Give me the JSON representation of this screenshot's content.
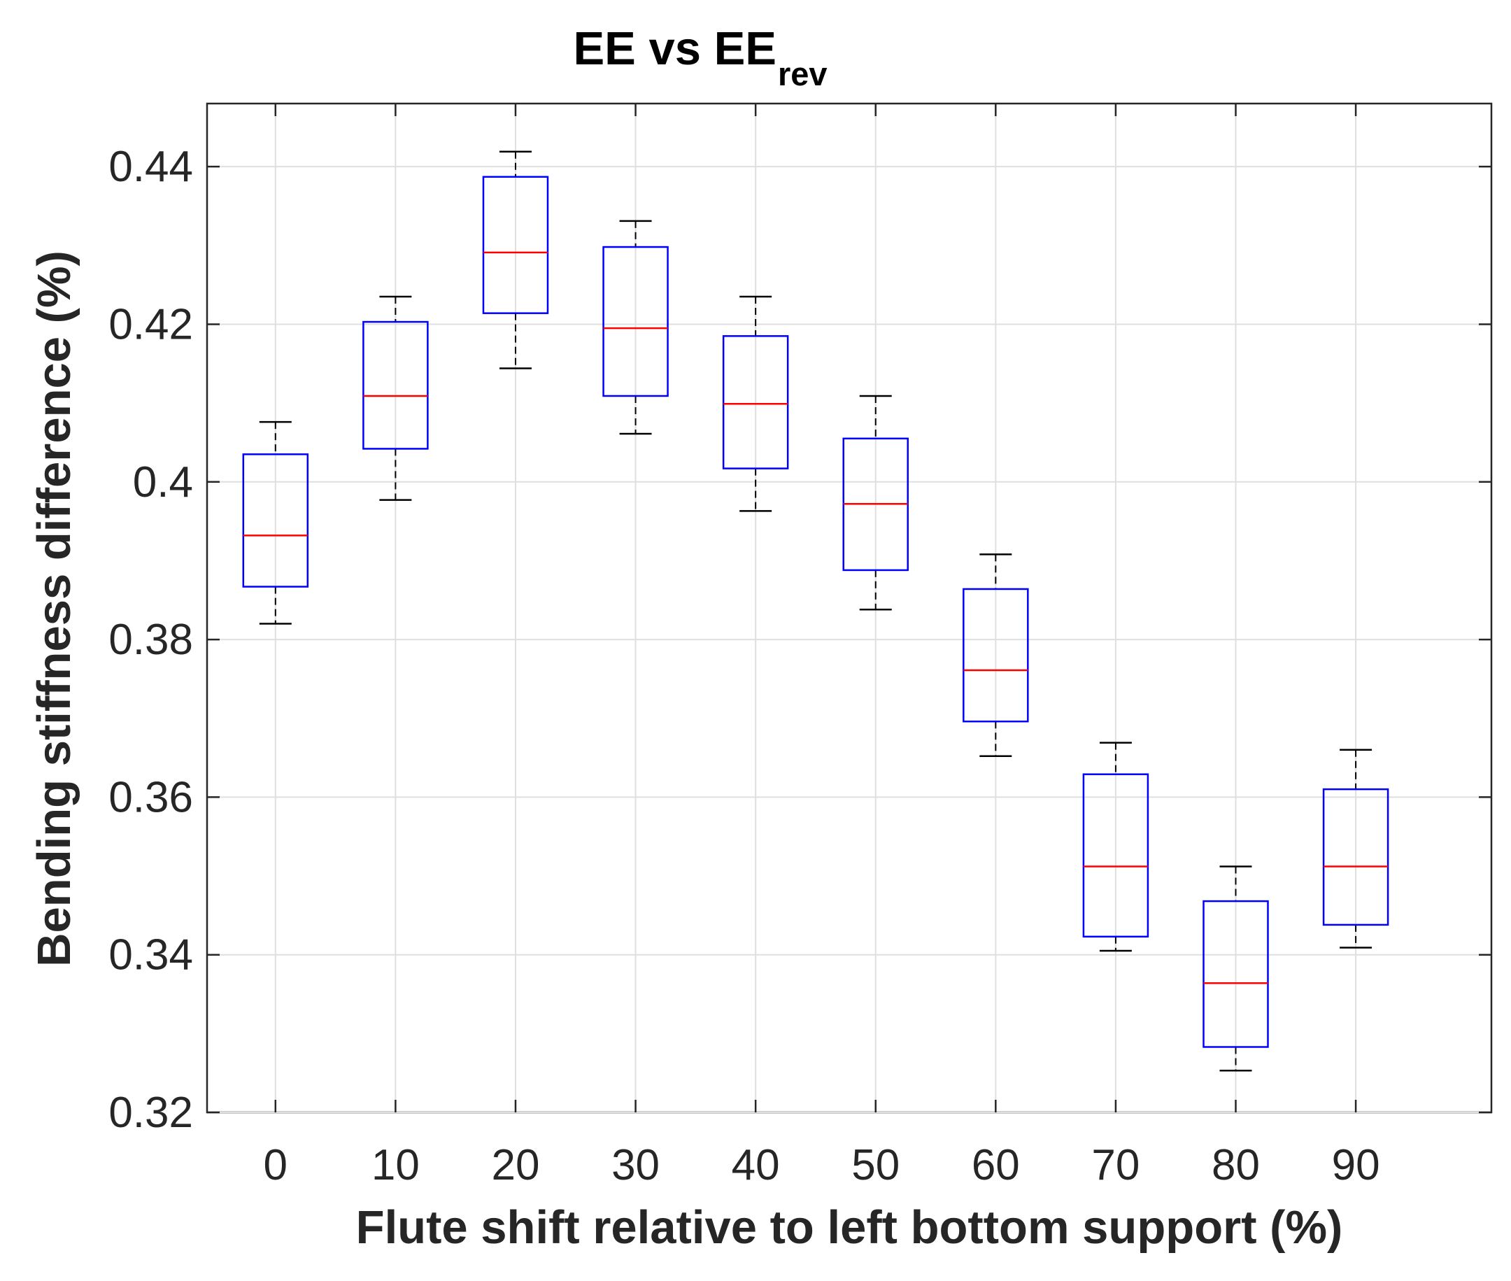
{
  "chart_data": {
    "type": "boxplot",
    "title": "EE vs EE",
    "title_subscript": "rev",
    "xlabel": "Flute shift relative to left bottom support (%)",
    "ylabel": "Bending stiffness difference (%)",
    "categories": [
      "0",
      "10",
      "20",
      "30",
      "40",
      "50",
      "60",
      "70",
      "80",
      "90"
    ],
    "ylim": [
      0.32,
      0.448
    ],
    "yticks": [
      0.32,
      0.34,
      0.36,
      0.38,
      0.4,
      0.42,
      0.44
    ],
    "ytick_labels": [
      "0.32",
      "0.34",
      "0.36",
      "0.38",
      "0.4",
      "0.42",
      "0.44"
    ],
    "grid": true,
    "boxes": [
      {
        "category": "0",
        "whisker_low": 0.382,
        "q1": 0.3867,
        "median": 0.3932,
        "q3": 0.4035,
        "whisker_high": 0.4076
      },
      {
        "category": "10",
        "whisker_low": 0.3977,
        "q1": 0.4042,
        "median": 0.4109,
        "q3": 0.4203,
        "whisker_high": 0.4235
      },
      {
        "category": "20",
        "whisker_low": 0.4144,
        "q1": 0.4214,
        "median": 0.4291,
        "q3": 0.4387,
        "whisker_high": 0.4419
      },
      {
        "category": "30",
        "whisker_low": 0.4061,
        "q1": 0.4109,
        "median": 0.4195,
        "q3": 0.4298,
        "whisker_high": 0.4331
      },
      {
        "category": "40",
        "whisker_low": 0.3963,
        "q1": 0.4017,
        "median": 0.4099,
        "q3": 0.4185,
        "whisker_high": 0.4235
      },
      {
        "category": "50",
        "whisker_low": 0.3838,
        "q1": 0.3888,
        "median": 0.3972,
        "q3": 0.4055,
        "whisker_high": 0.4109
      },
      {
        "category": "60",
        "whisker_low": 0.3652,
        "q1": 0.3696,
        "median": 0.3761,
        "q3": 0.3864,
        "whisker_high": 0.3908
      },
      {
        "category": "70",
        "whisker_low": 0.3405,
        "q1": 0.3423,
        "median": 0.3512,
        "q3": 0.3629,
        "whisker_high": 0.3669
      },
      {
        "category": "80",
        "whisker_low": 0.3253,
        "q1": 0.3283,
        "median": 0.3364,
        "q3": 0.3468,
        "whisker_high": 0.3512
      },
      {
        "category": "90",
        "whisker_low": 0.3409,
        "q1": 0.3438,
        "median": 0.3512,
        "q3": 0.361,
        "whisker_high": 0.366
      }
    ],
    "colors": {
      "box": "#0000ff",
      "median": "#ff0000",
      "whisker": "#000000",
      "grid": "#dfdfdf",
      "axis": "#262626"
    }
  }
}
